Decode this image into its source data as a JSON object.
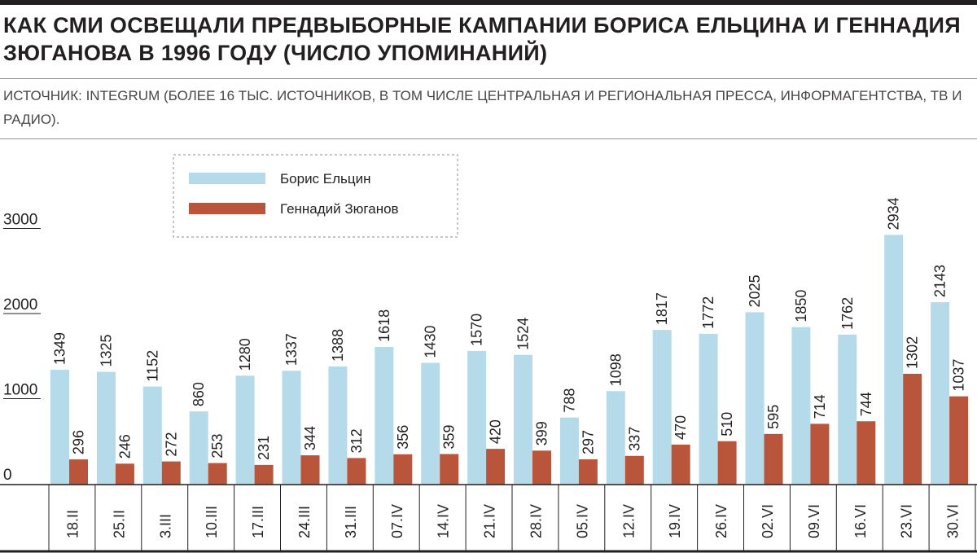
{
  "title": "Как СМИ освещали предвыборные кампании Бориса Ельцина и Геннадия Зюганова в 1996 году (число упоминаний)",
  "subtitle": "Источник: Integrum (более 16 тыс. источников, в том числе центральная и региональная пресса, информагентства, ТВ и радио).",
  "colors": {
    "yeltsin": "#b5dbea",
    "zyuganov": "#b8553a",
    "text": "#231f20",
    "rule": "#9a9698"
  },
  "chart_data": {
    "type": "bar",
    "title": "Как СМИ освещали предвыборные кампании Бориса Ельцина и Геннадия Зюганова в 1996 году (число упоминаний)",
    "xlabel": "",
    "ylabel": "",
    "ylim": [
      0,
      3000
    ],
    "yticks": [
      0,
      1000,
      2000,
      3000
    ],
    "grid": false,
    "legend_position": "top-left",
    "categories": [
      "18.II",
      "25.II",
      "3.III",
      "10.III",
      "17.III",
      "24.III",
      "31.III",
      "07.IV",
      "14.IV",
      "21.IV",
      "28.IV",
      "05.IV",
      "12.IV",
      "19.IV",
      "26.IV",
      "02.VI",
      "09.VI",
      "16.VI",
      "23.VI",
      "30.VI"
    ],
    "series": [
      {
        "name": "Борис Ельцин",
        "color": "#b5dbea",
        "values": [
          1349,
          1325,
          1152,
          860,
          1280,
          1337,
          1388,
          1618,
          1430,
          1570,
          1524,
          788,
          1098,
          1817,
          1772,
          2025,
          1850,
          1762,
          2934,
          2143
        ]
      },
      {
        "name": "Геннадий Зюганов",
        "color": "#b8553a",
        "values": [
          296,
          246,
          272,
          253,
          231,
          344,
          312,
          356,
          359,
          420,
          399,
          297,
          337,
          470,
          510,
          595,
          714,
          744,
          1302,
          1037
        ]
      }
    ]
  }
}
